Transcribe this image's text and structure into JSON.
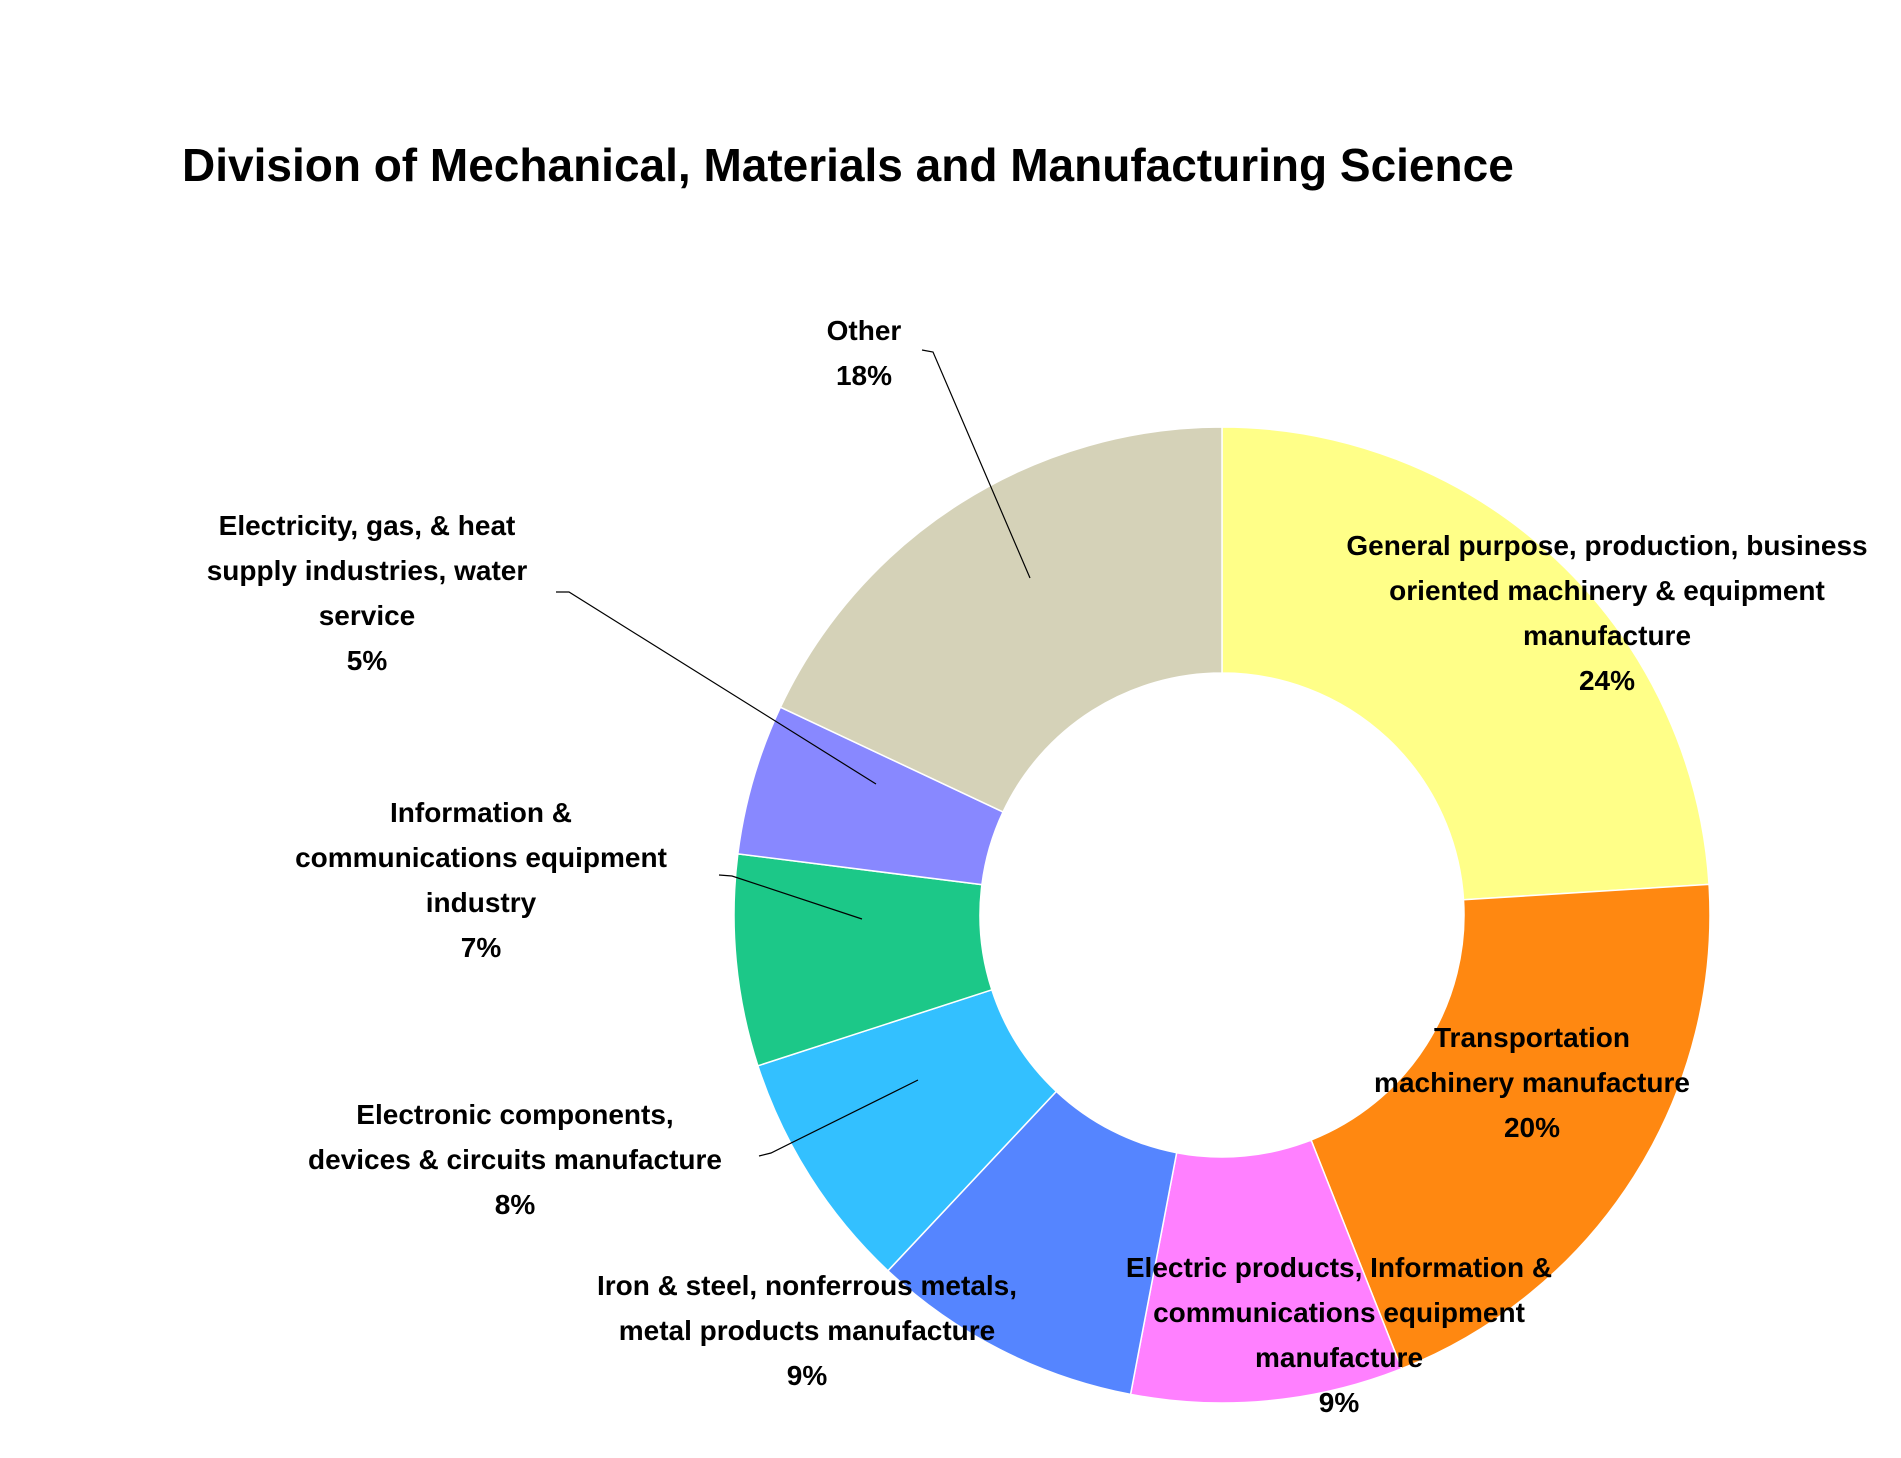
{
  "chart_data": {
    "type": "pie",
    "variant": "donut",
    "title": "Division of Mechanical, Materials and Manufacturing Science",
    "slices": [
      {
        "label": [
          "General purpose, production, business",
          "oriented machinery & equipment",
          "manufacture"
        ],
        "value": 24,
        "value_label": "24%",
        "color": "#FFFF88"
      },
      {
        "label": [
          "Transportation",
          "machinery manufacture"
        ],
        "value": 20,
        "value_label": "20%",
        "color": "#FF8811"
      },
      {
        "label": [
          "Electric products, Information &",
          "communications equipment",
          "manufacture"
        ],
        "value": 9,
        "value_label": "9%",
        "color": "#FF80FF"
      },
      {
        "label": [
          "Iron & steel, nonferrous metals,",
          "metal products manufacture"
        ],
        "value": 9,
        "value_label": "9%",
        "color": "#5585FF"
      },
      {
        "label": [
          "Electronic components,",
          "devices & circuits manufacture"
        ],
        "value": 8,
        "value_label": "8%",
        "color": "#33C0FF"
      },
      {
        "label": [
          "Information &",
          "communications equipment",
          "industry"
        ],
        "value": 7,
        "value_label": "7%",
        "color": "#1CC888"
      },
      {
        "label": [
          "Electricity, gas, & heat",
          "supply industries, water",
          "service"
        ],
        "value": 5,
        "value_label": "5%",
        "color": "#8888FF"
      },
      {
        "label": [
          "Other"
        ],
        "value": 18,
        "value_label": "18%",
        "color": "#D5D2B8"
      }
    ],
    "legend": "none",
    "labels": "outside-with-leaders"
  }
}
